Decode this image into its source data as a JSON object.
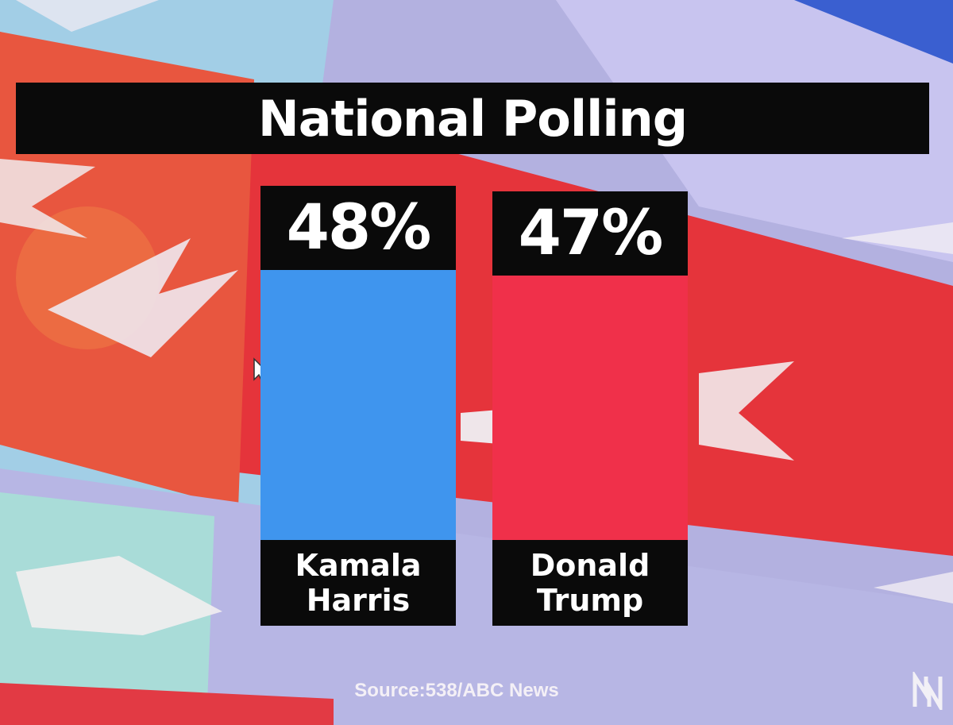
{
  "chart_data": {
    "type": "bar",
    "title": "National Polling",
    "categories": [
      "Kamala Harris",
      "Donald Trump"
    ],
    "category_lines": [
      [
        "Kamala",
        "Harris"
      ],
      [
        "Donald",
        "Trump"
      ]
    ],
    "values": [
      48,
      47
    ],
    "value_labels": [
      "48%",
      "47%"
    ],
    "colors": [
      "#3f95ee",
      "#f0304a"
    ],
    "ylim": [
      0,
      48
    ],
    "grid": false,
    "legend": "none"
  },
  "source": "Source:538/ABC News",
  "logo_icon": "network-logo-icon",
  "cursor_icon": "mouse-pointer-icon"
}
